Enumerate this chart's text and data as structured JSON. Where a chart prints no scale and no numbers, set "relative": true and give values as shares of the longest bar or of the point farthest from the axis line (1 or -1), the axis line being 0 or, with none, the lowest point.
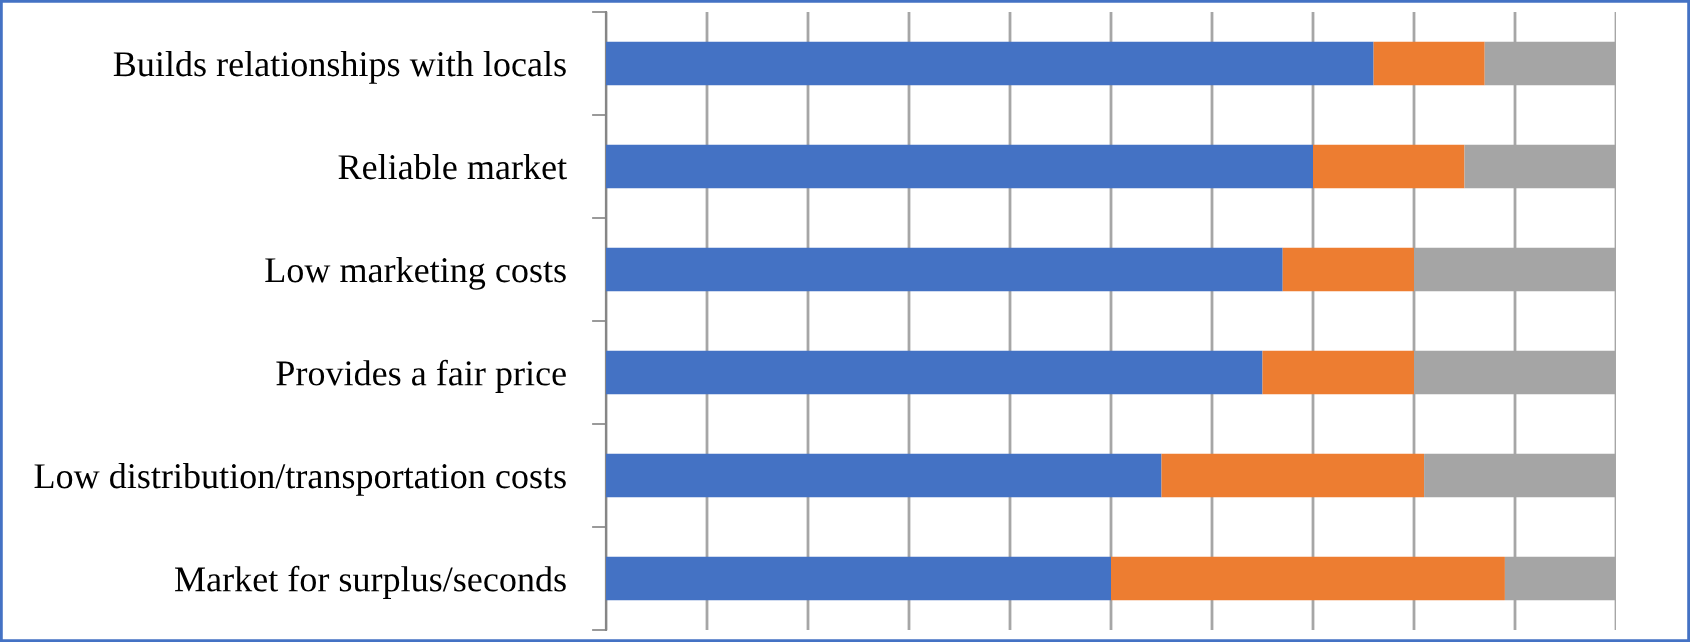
{
  "chart_data": {
    "type": "bar",
    "orientation": "horizontal",
    "stacked": true,
    "relative": true,
    "grid": "x",
    "legend": false,
    "categories": [
      "Builds relationships with locals",
      "Reliable market",
      "Low marketing costs",
      "Provides a fair price",
      "Low distribution/transportation costs",
      "Market for surplus/seconds"
    ],
    "series": [
      {
        "color": "#4472c4",
        "values": [
          0.76,
          0.7,
          0.67,
          0.65,
          0.55,
          0.5
        ]
      },
      {
        "color": "#ed7d31",
        "values": [
          0.11,
          0.15,
          0.13,
          0.15,
          0.26,
          0.39
        ]
      },
      {
        "color": "#a5a5a5",
        "values": [
          0.13,
          0.15,
          0.2,
          0.2,
          0.19,
          0.11
        ]
      }
    ]
  }
}
